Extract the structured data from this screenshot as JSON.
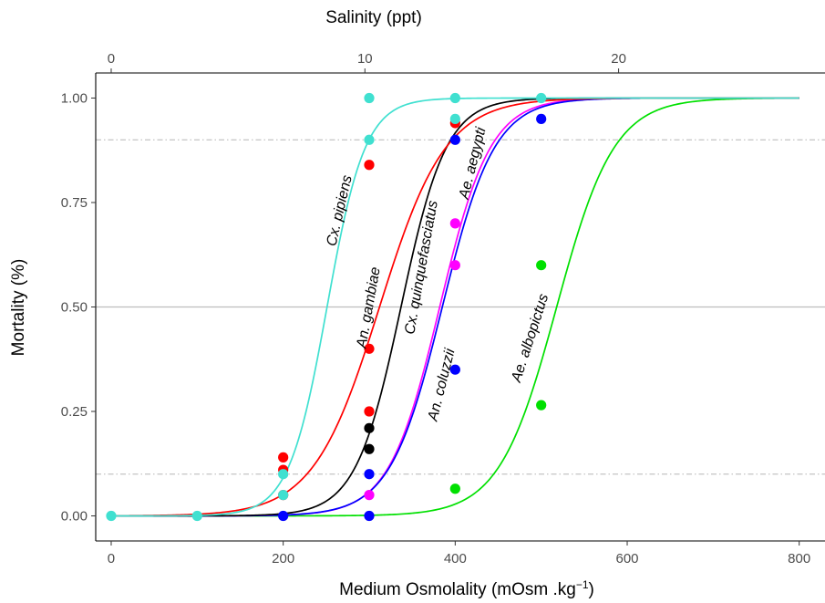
{
  "chart_data": {
    "type": "scatter",
    "title": "",
    "xlabel": "Medium Osmolality (mOsm .kg",
    "xlabel_sup": "−1",
    "xlabel_close": ")",
    "ylabel": "Mortality (%)",
    "secondary_xlabel": "Salinity (ppt)",
    "xlim": [
      -18,
      830
    ],
    "ylim": [
      -0.06,
      1.06
    ],
    "x_ticks": [
      "0",
      "200",
      "400",
      "600",
      "800"
    ],
    "y_ticks": [
      "0.00",
      "0.25",
      "0.50",
      "0.75",
      "1.00"
    ],
    "secondary_x_ticks": [
      "0",
      "10",
      "20"
    ],
    "osmolality_per_ppt": 29.5,
    "reference_lines": {
      "solid": [
        0.5
      ],
      "dashed": [
        0.1,
        0.9
      ]
    },
    "grid": false,
    "legend": "none",
    "series": [
      {
        "name": "Cx. pipiens",
        "color": "#40E0D0",
        "lc50": 251,
        "slope": 0.045,
        "points": [
          [
            0,
            0
          ],
          [
            100,
            0
          ],
          [
            200,
            0.05
          ],
          [
            200,
            0.1
          ],
          [
            300,
            0.9
          ],
          [
            300,
            1.0
          ],
          [
            400,
            0.95
          ],
          [
            400,
            1.0
          ],
          [
            500,
            1.0
          ]
        ]
      },
      {
        "name": "An. gambiae",
        "color": "#FF0000",
        "lc50": 312,
        "slope": 0.026,
        "points": [
          [
            200,
            0.05
          ],
          [
            200,
            0.11
          ],
          [
            200,
            0.14
          ],
          [
            300,
            0.25
          ],
          [
            300,
            0.4
          ],
          [
            300,
            0.84
          ],
          [
            400,
            0.94
          ]
        ]
      },
      {
        "name": "Cx. quinquefasciatus",
        "color": "#000000",
        "lc50": 337,
        "slope": 0.038,
        "points": [
          [
            300,
            0.16
          ],
          [
            300,
            0.21
          ]
        ]
      },
      {
        "name": "Ae. aegypti",
        "color": "#FF00FF",
        "lc50": 382,
        "slope": 0.034,
        "points": [
          [
            300,
            0.05
          ],
          [
            400,
            0.6
          ],
          [
            400,
            0.7
          ]
        ]
      },
      {
        "name": "An. coluzzii",
        "color": "#0000FF",
        "lc50": 385,
        "slope": 0.033,
        "points": [
          [
            200,
            0
          ],
          [
            300,
            0
          ],
          [
            300,
            0.1
          ],
          [
            400,
            0.35
          ],
          [
            400,
            0.9
          ],
          [
            500,
            0.95
          ]
        ]
      },
      {
        "name": "Ae. albopictus",
        "color": "#00E000",
        "lc50": 518,
        "slope": 0.03,
        "points": [
          [
            400,
            0.065
          ],
          [
            500,
            0.265
          ],
          [
            500,
            0.6
          ]
        ]
      }
    ],
    "plot_order": [
      "Ae. albopictus",
      "Ae. aegypti",
      "An. coluzzii",
      "Cx. quinquefasciatus",
      "An. gambiae",
      "Cx. pipiens"
    ]
  }
}
